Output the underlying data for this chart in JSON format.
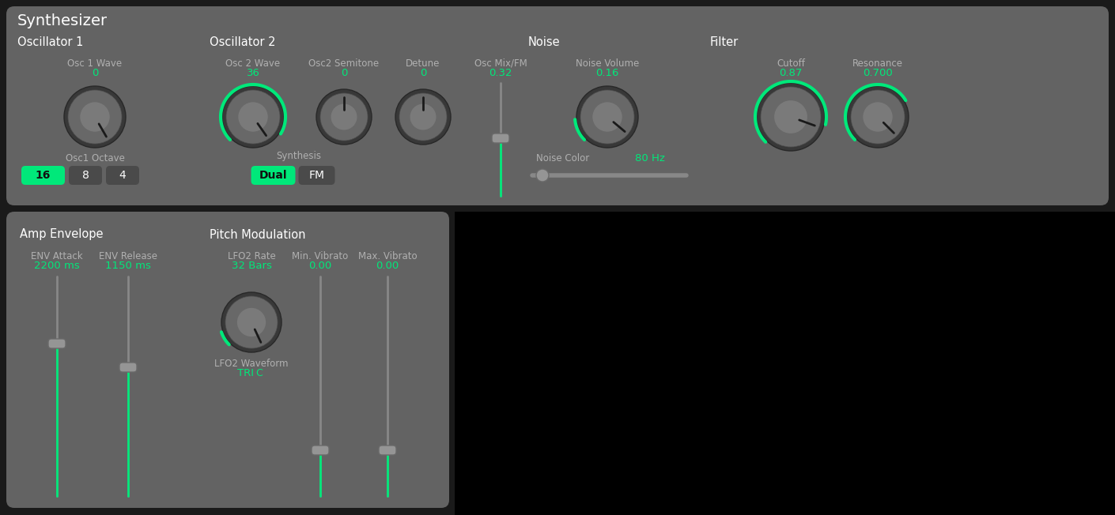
{
  "bg_dark": "#1a1a1a",
  "bg_top_panel": "#636363",
  "bg_section": "#5a5a5a",
  "green": "#00e87a",
  "white": "#ffffff",
  "label_gray": "#b0b0b0",
  "btn_dark": "#4a4a4a",
  "knob_outer": "#383838",
  "knob_body": "#686868",
  "knob_inner_light": "#7a7a7a",
  "title": "Synthesizer",
  "osc1_wave_label": "Osc 1 Wave",
  "osc1_wave_val": "0",
  "osc1_octave_label": "Osc1 Octave",
  "osc2_wave_label": "Osc 2 Wave",
  "osc2_wave_val": "36",
  "osc2_semi_label": "Osc2 Semitone",
  "osc2_semi_val": "0",
  "detune_label": "Detune",
  "detune_val": "0",
  "oscmix_label": "Osc Mix/FM",
  "oscmix_val": "0.32",
  "synthesis_label": "Synthesis",
  "noise_vol_label": "Noise Volume",
  "noise_vol_val": "0.16",
  "noise_color_label": "Noise Color",
  "noise_color_val": "80 Hz",
  "cutoff_label": "Cutoff",
  "cutoff_val": "0.87",
  "resonance_label": "Resonance",
  "resonance_val": "0.700",
  "env_attack_label": "ENV Attack",
  "env_attack_val": "2200 ms",
  "env_release_label": "ENV Release",
  "env_release_val": "1150 ms",
  "lfo2_rate_label": "LFO2 Rate",
  "lfo2_rate_val": "32 Bars",
  "min_vib_label": "Min. Vibrato",
  "min_vib_val": "0.00",
  "max_vib_label": "Max. Vibrato",
  "max_vib_val": "0.00",
  "lfo2_wave_label": "LFO2 Waveform",
  "lfo2_wave_val": "TRI C",
  "amp_env_label": "Amp Envelope",
  "pitch_mod_label": "Pitch Modulation",
  "osc1_label": "Oscillator 1",
  "osc2_label": "Oscillator 2",
  "noise_label": "Noise",
  "filter_label": "Filter"
}
